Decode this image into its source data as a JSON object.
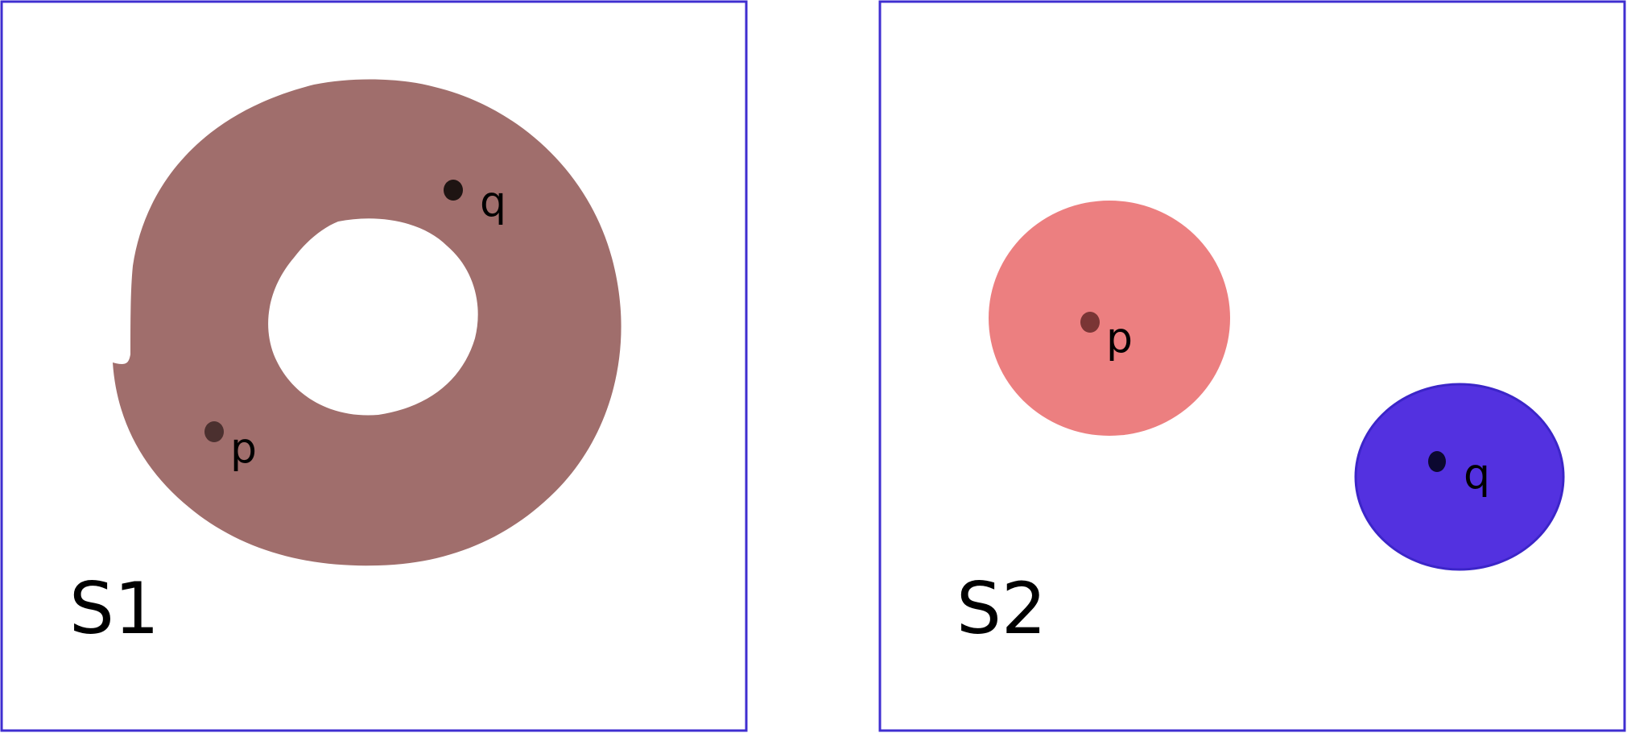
{
  "colors": {
    "frame": "#3f2ed0",
    "ring": "#a06e6c",
    "blob_p": "#ec7f80",
    "blob_q": "#5331e0",
    "blob_q_stroke": "#3c25c8",
    "dot_p_left": "#4b302f",
    "dot_q_left": "#1e1412",
    "dot_p_right": "#7a3535",
    "dot_q_right": "#0c0830"
  },
  "panels": [
    {
      "label": "S1",
      "points": {
        "p": "p",
        "q": "q"
      }
    },
    {
      "label": "S2",
      "points": {
        "p": "p",
        "q": "q"
      }
    }
  ]
}
